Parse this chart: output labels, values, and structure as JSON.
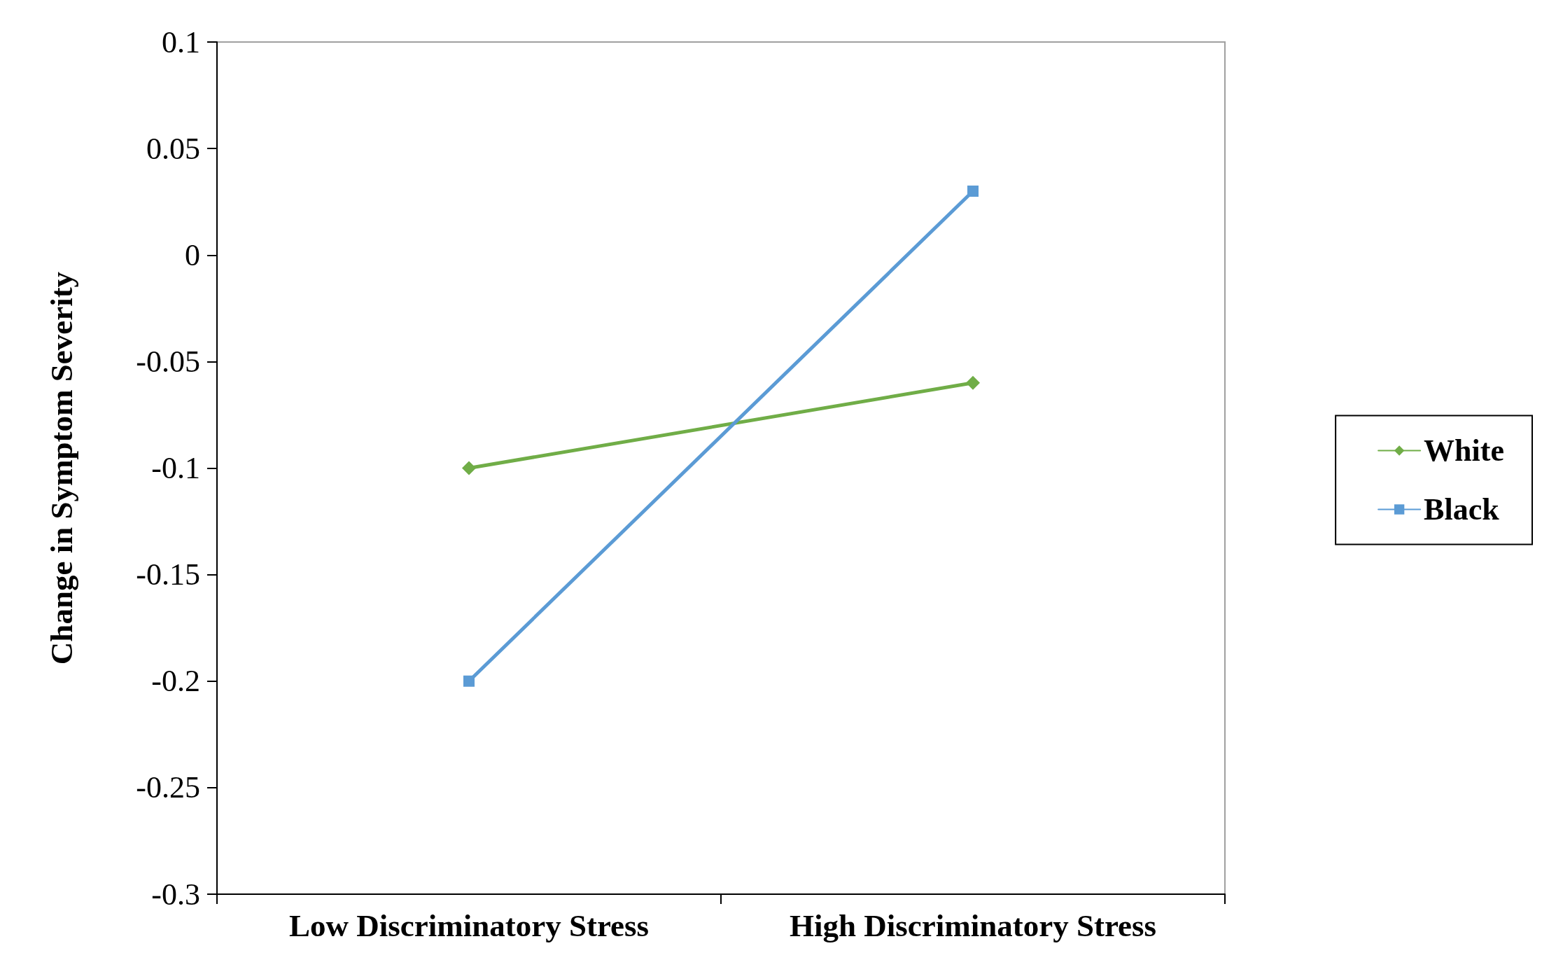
{
  "chart_data": {
    "type": "line",
    "ylabel": "Change in Symptom Severity",
    "categories": [
      "Low Discriminatory Stress",
      "High Discriminatory Stress"
    ],
    "series": [
      {
        "name": "White",
        "color": "#70ad47",
        "values": [
          -0.1,
          -0.06
        ],
        "marker": "diamond"
      },
      {
        "name": "Black",
        "color": "#5b9bd5",
        "values": [
          -0.2,
          0.03
        ],
        "marker": "square"
      }
    ],
    "ylim": [
      -0.3,
      0.1
    ],
    "yticks": [
      -0.3,
      -0.25,
      -0.2,
      -0.15,
      -0.1,
      -0.05,
      0,
      0.05,
      0.1
    ],
    "grid": false,
    "legend": "right",
    "line_style": "solid"
  }
}
